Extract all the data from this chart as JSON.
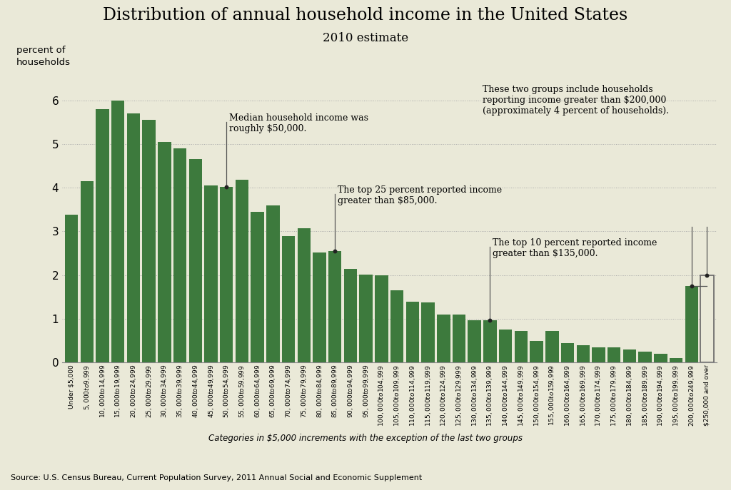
{
  "title": "Distribution of annual household income in the United States",
  "subtitle": "2010 estimate",
  "ylabel": "percent of\nhouseholds",
  "xlabel_note": "Categories in $5,000 increments with the exception of the last two groups",
  "source": "Source: U.S. Census Bureau, Current Population Survey, 2011 Annual Social and Economic Supplement",
  "background_color": "#eae9d8",
  "bar_color": "#3d7a3d",
  "categories": [
    "Under $5,000",
    "$5,000 to $9,999",
    "$10,000 to $14,999",
    "$15,000 to $19,999",
    "$20,000 to $24,999",
    "$25,000 to $29,999",
    "$30,000 to $34,999",
    "$35,000 to $39,999",
    "$40,000 to $44,999",
    "$45,000 to $49,999",
    "$50,000 to $54,999",
    "$55,000 to $59,999",
    "$60,000 to $64,999",
    "$65,000 to $69,999",
    "$70,000 to $74,999",
    "$75,000 to $79,999",
    "$80,000 to $84,999",
    "$85,000 to $89,999",
    "$90,000 to $94,999",
    "$95,000 to $99,999",
    "$100,000 to $104,999",
    "$105,000 to $109,999",
    "$110,000 to $114,999",
    "$115,000 to $119,999",
    "$120,000 to $124,999",
    "$125,000 to $129,999",
    "$130,000 to $134,999",
    "$135,000 to $139,999",
    "$140,000 to $144,999",
    "$145,000 to $149,999",
    "$150,000 to $154,999",
    "$155,000 to $159,999",
    "$160,000 to $164,999",
    "$165,000 to $169,999",
    "$170,000 to $174,999",
    "$175,000 to $179,999",
    "$180,000 to $184,999",
    "$185,000 to $189,999",
    "$190,000 to $194,999",
    "$195,000 to $199,999",
    "$200,000 to $249,999",
    "$250,000 and over"
  ],
  "values": [
    3.38,
    4.15,
    5.8,
    6.0,
    5.7,
    5.55,
    5.05,
    4.9,
    4.65,
    4.05,
    4.02,
    4.18,
    3.45,
    3.6,
    2.9,
    3.07,
    2.52,
    2.55,
    2.15,
    2.02,
    2.0,
    1.65,
    1.4,
    1.38,
    1.1,
    1.1,
    0.97,
    0.97,
    0.75,
    0.72,
    0.5,
    0.73,
    0.45,
    0.4,
    0.35,
    0.35,
    0.3,
    0.25,
    0.2,
    0.1,
    1.75,
    2.0
  ],
  "ylim": [
    0,
    6.5
  ],
  "yticks": [
    0,
    1,
    2,
    3,
    4,
    5,
    6
  ],
  "ann_median_bar": 10,
  "ann_median_text": "Median household income was\nroughly $50,000.",
  "ann_25pct_bar": 17,
  "ann_25pct_text": "The top 25 percent reported income\ngreater than $85,000.",
  "ann_10pct_bar": 27,
  "ann_10pct_text": "The top 10 percent reported income\ngreater than $135,000.",
  "ann_200k_text": "These two groups include households\nreporting income greater than $200,000\n(approximately 4 percent of households).",
  "ann_200k_bar1": 40,
  "ann_200k_bar2": 41
}
